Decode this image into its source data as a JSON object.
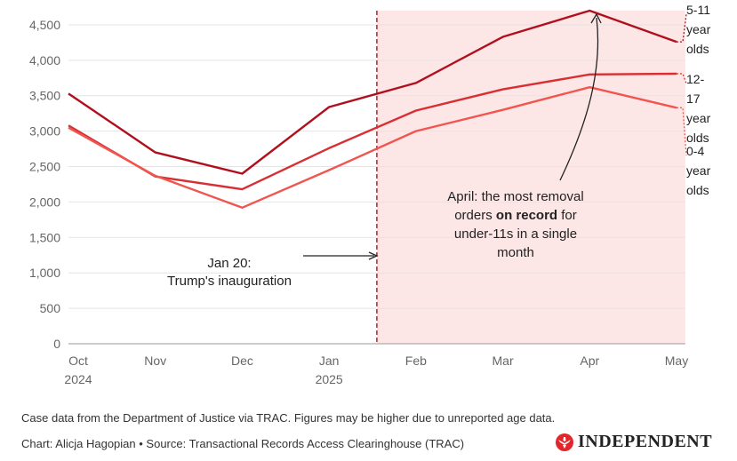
{
  "chart_data": {
    "type": "line",
    "x": [
      "Oct 2024",
      "Nov",
      "Dec",
      "Jan 2025",
      "Feb",
      "Mar",
      "Apr",
      "May"
    ],
    "x_tick_labels": [
      [
        "Oct",
        "2024"
      ],
      [
        "Nov"
      ],
      [
        "Dec"
      ],
      [
        "Jan",
        "2025"
      ],
      [
        "Feb"
      ],
      [
        "Mar"
      ],
      [
        "Apr"
      ],
      [
        "May"
      ]
    ],
    "ylim": [
      0,
      4700
    ],
    "y_ticks": [
      0,
      500,
      1000,
      1500,
      2000,
      2500,
      3000,
      3500,
      4000,
      4500
    ],
    "y_tick_labels": [
      "0",
      "500",
      "1,000",
      "1,500",
      "2,000",
      "2,500",
      "3,000",
      "3,500",
      "4,000",
      "4,500"
    ],
    "grid": true,
    "series": [
      {
        "name": "5-11 year olds",
        "label_lines": [
          "5-11",
          "year",
          "olds"
        ],
        "color": "#b0101e",
        "values": [
          3530,
          2700,
          2400,
          3340,
          3680,
          4330,
          4700,
          4260
        ]
      },
      {
        "name": "12-17 year olds",
        "label_lines": [
          "12-",
          "17",
          "year",
          "olds"
        ],
        "color": "#d72f33",
        "values": [
          3080,
          2360,
          2180,
          2760,
          3290,
          3590,
          3800,
          3810
        ]
      },
      {
        "name": "0-4 year olds",
        "label_lines": [
          "0-4",
          "year",
          "olds"
        ],
        "color": "#f0564f",
        "values": [
          3050,
          2370,
          1920,
          2450,
          3000,
          3300,
          3620,
          3330
        ]
      }
    ],
    "vertical_marker": {
      "x_position": 3.55,
      "style": "dashed",
      "color": "#b8303c"
    },
    "shaded_region": {
      "from": 3.55,
      "to": 7.1,
      "color": "#fde6e6"
    },
    "annotations": [
      {
        "id": "inauguration",
        "lines": [
          "Jan 20:",
          "Trump's inauguration"
        ]
      },
      {
        "id": "april",
        "lines": [
          [
            {
              "t": "April: the most removal",
              "b": false
            }
          ],
          [
            {
              "t": "orders ",
              "b": false
            },
            {
              "t": "on record",
              "b": true
            },
            {
              "t": " for",
              "b": false
            }
          ],
          [
            {
              "t": "under-11s in a single",
              "b": false
            }
          ],
          [
            {
              "t": "month",
              "b": false
            }
          ]
        ]
      }
    ]
  },
  "footer": {
    "note": "Case data from the Department of Justice via TRAC. Figures may be higher due to unreported age data.",
    "credit_chart": "Chart: Alicja Hagopian",
    "credit_sep": " • ",
    "credit_source": "Source: Transactional Records Access Clearinghouse (TRAC)",
    "logo_text": "INDEPENDENT",
    "logo_icon": "independent-eagle-icon"
  }
}
